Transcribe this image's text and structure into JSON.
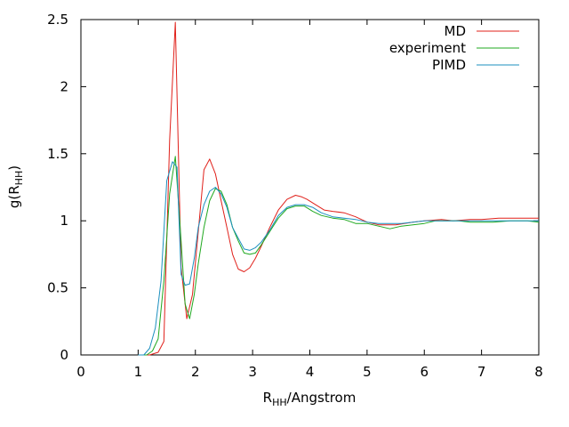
{
  "chart_data": {
    "type": "line",
    "xlabel": {
      "main": "R",
      "sub": "HH",
      "rest": "/Angstrom"
    },
    "ylabel": {
      "main": "g(R",
      "sub": "HH",
      "rest": ")"
    },
    "xlim": [
      0,
      8
    ],
    "ylim": [
      0,
      2.5
    ],
    "xticks": [
      0,
      1,
      2,
      3,
      4,
      5,
      6,
      7,
      8
    ],
    "xtick_labels": [
      "0",
      "1",
      "2",
      "3",
      "4",
      "5",
      "6",
      "7",
      "8"
    ],
    "yticks": [
      0,
      0.5,
      1,
      1.5,
      2,
      2.5
    ],
    "ytick_labels": [
      "0",
      "0.5",
      "1",
      "1.5",
      "2",
      "2.5"
    ],
    "grid": false,
    "legend_position": "top-right",
    "series": [
      {
        "name": "MD",
        "color": "#e0201a",
        "x": [
          1.0,
          1.2,
          1.35,
          1.45,
          1.55,
          1.65,
          1.75,
          1.85,
          1.95,
          2.05,
          2.15,
          2.25,
          2.35,
          2.45,
          2.55,
          2.65,
          2.75,
          2.85,
          2.95,
          3.05,
          3.15,
          3.3,
          3.45,
          3.6,
          3.75,
          3.85,
          3.95,
          4.1,
          4.25,
          4.4,
          4.6,
          4.8,
          5.0,
          5.2,
          5.5,
          5.8,
          6.0,
          6.3,
          6.5,
          6.8,
          7.0,
          7.3,
          7.6,
          8.0
        ],
        "y": [
          0.0,
          0.0,
          0.02,
          0.1,
          1.6,
          2.48,
          0.65,
          0.27,
          0.45,
          0.92,
          1.38,
          1.46,
          1.35,
          1.15,
          0.95,
          0.75,
          0.64,
          0.62,
          0.65,
          0.72,
          0.81,
          0.95,
          1.08,
          1.16,
          1.19,
          1.18,
          1.16,
          1.12,
          1.08,
          1.07,
          1.06,
          1.03,
          0.99,
          0.97,
          0.97,
          0.99,
          1.0,
          1.01,
          1.0,
          1.01,
          1.01,
          1.02,
          1.02,
          1.02
        ]
      },
      {
        "name": "experiment",
        "color": "#1fa81f",
        "x": [
          1.0,
          1.15,
          1.25,
          1.35,
          1.45,
          1.55,
          1.65,
          1.75,
          1.82,
          1.9,
          1.98,
          2.05,
          2.15,
          2.25,
          2.35,
          2.45,
          2.55,
          2.65,
          2.75,
          2.85,
          2.95,
          3.05,
          3.15,
          3.3,
          3.45,
          3.6,
          3.75,
          3.9,
          4.05,
          4.2,
          4.4,
          4.6,
          4.8,
          5.0,
          5.2,
          5.4,
          5.6,
          5.8,
          6.0,
          6.2,
          6.4,
          6.6,
          6.8,
          7.0,
          7.2,
          7.5,
          7.8,
          8.0
        ],
        "y": [
          0.0,
          0.0,
          0.03,
          0.12,
          0.55,
          1.2,
          1.48,
          0.85,
          0.38,
          0.27,
          0.45,
          0.68,
          0.95,
          1.15,
          1.24,
          1.22,
          1.12,
          0.95,
          0.85,
          0.76,
          0.75,
          0.76,
          0.82,
          0.92,
          1.02,
          1.09,
          1.11,
          1.11,
          1.07,
          1.04,
          1.02,
          1.01,
          0.98,
          0.98,
          0.96,
          0.94,
          0.96,
          0.97,
          0.98,
          1.0,
          1.0,
          1.0,
          0.99,
          0.99,
          0.99,
          1.0,
          1.0,
          0.99
        ]
      },
      {
        "name": "PIMD",
        "color": "#1b8fbf",
        "x": [
          1.0,
          1.1,
          1.2,
          1.3,
          1.4,
          1.5,
          1.6,
          1.68,
          1.75,
          1.82,
          1.9,
          1.98,
          2.05,
          2.15,
          2.25,
          2.35,
          2.45,
          2.55,
          2.65,
          2.75,
          2.85,
          2.95,
          3.05,
          3.15,
          3.3,
          3.45,
          3.6,
          3.75,
          3.9,
          4.05,
          4.2,
          4.4,
          4.6,
          4.8,
          5.0,
          5.2,
          5.4,
          5.6,
          5.8,
          6.0,
          6.3,
          6.6,
          6.9,
          7.2,
          7.5,
          7.8,
          8.0
        ],
        "y": [
          0.0,
          0.0,
          0.05,
          0.2,
          0.55,
          1.3,
          1.44,
          1.4,
          0.6,
          0.52,
          0.53,
          0.72,
          0.95,
          1.12,
          1.22,
          1.25,
          1.2,
          1.1,
          0.95,
          0.87,
          0.79,
          0.78,
          0.8,
          0.84,
          0.93,
          1.04,
          1.1,
          1.12,
          1.12,
          1.1,
          1.06,
          1.03,
          1.02,
          1.01,
          0.99,
          0.98,
          0.98,
          0.98,
          0.99,
          1.0,
          1.0,
          1.0,
          1.0,
          1.0,
          1.0,
          1.0,
          1.0
        ]
      }
    ]
  }
}
